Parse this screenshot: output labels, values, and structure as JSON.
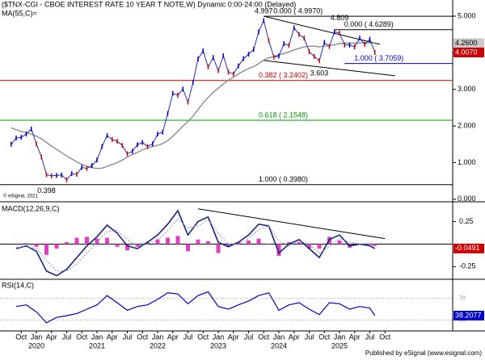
{
  "chart_data": [
    {
      "type": "price",
      "title": "($TNX-CGI - CBOE INTEREST RATE 10 YEAR T NOTE,W) Dynamic 0:00-24:00 (Delayed)",
      "credit": "© eSignal, 2021",
      "x": [
        "2019-08",
        "2019-09",
        "2019-10",
        "2019-11",
        "2019-12",
        "2020-01",
        "2020-02",
        "2020-03",
        "2020-04",
        "2020-05",
        "2020-06",
        "2020-07",
        "2020-08",
        "2020-09",
        "2020-10",
        "2020-11",
        "2020-12",
        "2021-01",
        "2021-02",
        "2021-03",
        "2021-04",
        "2021-05",
        "2021-06",
        "2021-07",
        "2021-08",
        "2021-09",
        "2021-10",
        "2021-11",
        "2021-12",
        "2022-01",
        "2022-02",
        "2022-03",
        "2022-04",
        "2022-05",
        "2022-06",
        "2022-07",
        "2022-08",
        "2022-09",
        "2022-10",
        "2022-11",
        "2022-12",
        "2023-01",
        "2023-02",
        "2023-03",
        "2023-04",
        "2023-05",
        "2023-06",
        "2023-07",
        "2023-08",
        "2023-09",
        "2023-10",
        "2023-11",
        "2023-12",
        "2024-01",
        "2024-02",
        "2024-03",
        "2024-04",
        "2024-05",
        "2024-06",
        "2024-07",
        "2024-08",
        "2024-09",
        "2024-10",
        "2024-11",
        "2024-12",
        "2025-01",
        "2025-02",
        "2025-03",
        "2025-04",
        "2025-05",
        "2025-06",
        "2025-07",
        "2025-08"
      ],
      "series": [
        {
          "color": "#1f2fbf",
          "up_color": "#0000cc",
          "down_color": "#cc0000",
          "values": [
            1.5,
            1.67,
            1.69,
            1.78,
            1.92,
            1.51,
            1.15,
            0.67,
            0.64,
            0.65,
            0.66,
            0.53,
            0.7,
            0.68,
            0.87,
            0.84,
            0.92,
            1.07,
            1.44,
            1.74,
            1.63,
            1.58,
            1.47,
            1.24,
            1.31,
            1.49,
            1.55,
            1.44,
            1.51,
            1.78,
            1.83,
            2.34,
            2.89,
            2.84,
            3.01,
            2.65,
            3.19,
            3.83,
            4.05,
            3.61,
            3.87,
            3.51,
            3.92,
            3.47,
            3.42,
            3.64,
            3.84,
            3.96,
            4.09,
            4.57,
            4.88,
            4.33,
            3.88,
            3.91,
            4.25,
            4.2,
            4.68,
            4.5,
            4.4,
            4.03,
            3.9,
            3.78,
            4.28,
            4.17,
            4.57,
            4.54,
            4.21,
            4.21,
            4.16,
            4.4,
            4.23,
            4.37,
            4.007
          ]
        },
        {
          "name": "MA(55,C)=",
          "color": "#8c8c8c",
          "values": [
            1.95,
            1.9,
            1.85,
            1.82,
            1.78,
            1.72,
            1.65,
            1.55,
            1.45,
            1.36,
            1.27,
            1.18,
            1.1,
            1.02,
            0.95,
            0.9,
            0.86,
            0.84,
            0.85,
            0.9,
            0.95,
            1.0,
            1.07,
            1.15,
            1.22,
            1.28,
            1.35,
            1.4,
            1.44,
            1.47,
            1.52,
            1.6,
            1.72,
            1.85,
            2.0,
            2.12,
            2.27,
            2.45,
            2.63,
            2.78,
            2.92,
            3.03,
            3.15,
            3.25,
            3.33,
            3.42,
            3.5,
            3.57,
            3.62,
            3.7,
            3.8,
            3.86,
            3.9,
            3.94,
            3.98,
            4.02,
            4.08,
            4.12,
            4.16,
            4.18,
            4.18,
            4.16,
            4.18,
            4.2,
            4.22,
            4.25,
            4.26,
            4.26,
            4.26,
            4.27,
            4.27,
            4.27,
            4.26
          ]
        }
      ],
      "ylim": [
        -0.07,
        5.44
      ],
      "yticks": [
        {
          "value": 5,
          "label": "5.000"
        },
        {
          "value": 4,
          "label": "4.000"
        },
        {
          "value": 3,
          "label": "3.000"
        },
        {
          "value": 2,
          "label": "2.000"
        },
        {
          "value": 1,
          "label": "1.000"
        },
        {
          "value": 0,
          "label": "0.000"
        }
      ],
      "fib_levels": [
        {
          "value": 4.997,
          "label": "0.000 ( 4.9970)",
          "color": "#000000",
          "from": "2023-10"
        },
        {
          "value": 4.6289,
          "label": "0.000 ( 4.6289)",
          "color": "#000000",
          "from": "2024-12"
        },
        {
          "value": 3.7059,
          "label": "1.000 ( 3.7059)",
          "color": "#0000cc",
          "from": "2025-02"
        },
        {
          "value": 3.2402,
          "label": "0.382 ( 3.2402)",
          "color": "#cc0000"
        },
        {
          "value": 2.1548,
          "label": "0.618 ( 2.1548)",
          "color": "#009900"
        },
        {
          "value": 0.398,
          "label": "1.000 ( 0.3980)",
          "color": "#000000"
        }
      ],
      "trendlines": [
        {
          "x": [
            "2023-10",
            "2025-09"
          ],
          "values": [
            4.997,
            4.23
          ]
        },
        {
          "x": [
            "2023-10",
            "2025-12"
          ],
          "values": [
            3.79,
            3.37
          ]
        }
      ],
      "points": [
        {
          "x": "2023-10",
          "value": 4.997
        },
        {
          "x": "2025-01",
          "value": 4.809
        },
        {
          "x": "2024-09",
          "value": 3.603
        },
        {
          "x": "2020-03",
          "value": 0.398
        }
      ],
      "price_labels": [
        {
          "value": 4.26,
          "label": "4.2600",
          "color": "#c8c8c8",
          "text_color": "#000000"
        },
        {
          "value": 4.007,
          "label": "4.0070",
          "color": "#cc0000",
          "text_color": "#ffffff"
        }
      ]
    },
    {
      "type": "macd",
      "title": "MACD(12,26,9,C)",
      "x": [
        "2019-09",
        "2019-11",
        "2020-01",
        "2020-03",
        "2020-05",
        "2020-07",
        "2020-09",
        "2020-11",
        "2021-01",
        "2021-03",
        "2021-05",
        "2021-07",
        "2021-09",
        "2021-11",
        "2022-01",
        "2022-03",
        "2022-05",
        "2022-07",
        "2022-09",
        "2022-11",
        "2023-01",
        "2023-03",
        "2023-05",
        "2023-07",
        "2023-09",
        "2023-11",
        "2024-01",
        "2024-03",
        "2024-05",
        "2024-07",
        "2024-09",
        "2024-11",
        "2025-01",
        "2025-03",
        "2025-05",
        "2025-07",
        "2025-08"
      ],
      "series": [
        {
          "kind": "line",
          "color": "#1a237e",
          "label_color": "#cc0000",
          "text_color": "#ffffff",
          "values": [
            -0.05,
            -0.02,
            -0.08,
            -0.3,
            -0.35,
            -0.28,
            -0.15,
            -0.02,
            0.08,
            0.21,
            0.12,
            -0.02,
            -0.05,
            0.02,
            0.1,
            0.22,
            0.37,
            0.1,
            0.25,
            0.3,
            0.02,
            -0.03,
            0.02,
            0.1,
            0.22,
            0.2,
            -0.1,
            0.0,
            0.05,
            -0.05,
            -0.15,
            0.05,
            0.1,
            -0.02,
            0.0,
            -0.02,
            -0.0491
          ]
        },
        {
          "kind": "dotted",
          "color": "#7f8fcf",
          "values": [
            -0.04,
            -0.03,
            -0.05,
            -0.18,
            -0.3,
            -0.3,
            -0.22,
            -0.1,
            0.02,
            0.14,
            0.15,
            0.05,
            -0.02,
            0.0,
            0.05,
            0.15,
            0.28,
            0.18,
            0.2,
            0.27,
            0.12,
            0.0,
            0.0,
            0.06,
            0.16,
            0.2,
            0.03,
            -0.02,
            0.03,
            0.0,
            -0.1,
            -0.03,
            0.06,
            0.02,
            0.0,
            -0.01,
            -0.03
          ]
        },
        {
          "kind": "histogram",
          "color": "#e040c0",
          "values": [
            -0.01,
            0.01,
            -0.03,
            -0.12,
            -0.05,
            0.02,
            0.07,
            0.08,
            0.06,
            0.07,
            -0.03,
            -0.07,
            -0.03,
            0.02,
            0.05,
            0.07,
            0.09,
            -0.08,
            0.05,
            0.03,
            -0.1,
            -0.03,
            0.02,
            0.04,
            0.06,
            0.0,
            -0.13,
            0.02,
            0.02,
            -0.05,
            -0.05,
            0.08,
            0.04,
            -0.04,
            0.0,
            -0.01,
            -0.02
          ]
        }
      ],
      "ylim": [
        -0.39,
        0.45
      ],
      "yticks": [
        0.25,
        -0.25
      ],
      "trendlines": [
        {
          "x": [
            "2022-09",
            "2025-10"
          ],
          "values": [
            0.39,
            0.06
          ]
        }
      ]
    },
    {
      "type": "rsi",
      "title": "RSI(14,C)",
      "x": [
        "2019-09",
        "2019-11",
        "2020-01",
        "2020-03",
        "2020-05",
        "2020-07",
        "2020-09",
        "2020-11",
        "2021-01",
        "2021-03",
        "2021-05",
        "2021-07",
        "2021-09",
        "2021-11",
        "2022-01",
        "2022-03",
        "2022-05",
        "2022-07",
        "2022-09",
        "2022-11",
        "2023-01",
        "2023-03",
        "2023-05",
        "2023-07",
        "2023-09",
        "2023-11",
        "2024-01",
        "2024-03",
        "2024-05",
        "2024-07",
        "2024-09",
        "2024-11",
        "2025-01",
        "2025-03",
        "2025-05",
        "2025-07",
        "2025-08"
      ],
      "series": [
        {
          "kind": "line",
          "color": "#0000cc",
          "label_color": "#0000cc",
          "text_color": "#ffffff",
          "values": [
            55,
            58,
            45,
            25,
            35,
            38,
            42,
            50,
            58,
            75,
            62,
            48,
            55,
            58,
            68,
            80,
            78,
            60,
            75,
            82,
            55,
            50,
            58,
            65,
            75,
            80,
            48,
            58,
            62,
            50,
            40,
            62,
            60,
            50,
            55,
            52,
            38.2077
          ]
        }
      ],
      "ylim": [
        10,
        102
      ],
      "yticks": [
        70,
        30
      ]
    }
  ],
  "time_axis": {
    "months": [
      {
        "value": "2019-10",
        "label": "Oct"
      },
      {
        "value": "2020-01",
        "label": "Jan"
      },
      {
        "value": "2020-04",
        "label": "Apr"
      },
      {
        "value": "2020-07",
        "label": "Jul"
      },
      {
        "value": "2020-10",
        "label": "Oct"
      },
      {
        "value": "2021-01",
        "label": "Jan"
      },
      {
        "value": "2021-04",
        "label": "Apr"
      },
      {
        "value": "2021-07",
        "label": "Jul"
      },
      {
        "value": "2021-10",
        "label": "Oct"
      },
      {
        "value": "2022-01",
        "label": "Jan"
      },
      {
        "value": "2022-04",
        "label": "Apr"
      },
      {
        "value": "2022-07",
        "label": "Jul"
      },
      {
        "value": "2022-10",
        "label": "Oct"
      },
      {
        "value": "2023-01",
        "label": "Jan"
      },
      {
        "value": "2023-04",
        "label": "Apr"
      },
      {
        "value": "2023-07",
        "label": "Jul"
      },
      {
        "value": "2023-10",
        "label": "Oct"
      },
      {
        "value": "2024-01",
        "label": "Jan"
      },
      {
        "value": "2024-04",
        "label": "Apr"
      },
      {
        "value": "2024-07",
        "label": "Jul"
      },
      {
        "value": "2024-10",
        "label": "Oct"
      },
      {
        "value": "2025-01",
        "label": "Jan"
      },
      {
        "value": "2025-04",
        "label": "Apr"
      },
      {
        "value": "2025-07",
        "label": "Jul"
      },
      {
        "value": "2025-10",
        "label": "Oct"
      }
    ],
    "years": [
      2020,
      2021,
      2022,
      2023,
      2024,
      2025
    ]
  },
  "footer": "Published by eSignal (www.esignal.com)"
}
